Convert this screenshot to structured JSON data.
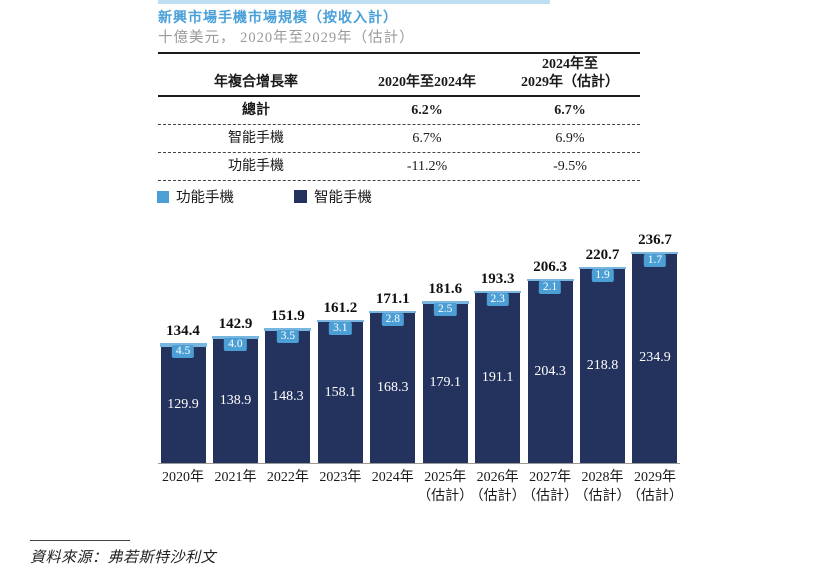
{
  "page": {
    "title": "新興市場手機市場規模（按收入計）",
    "subtitle": "十億美元， 2020年至2029年（估計）"
  },
  "cagr_table": {
    "col1_header": "年複合增長率",
    "col2_header": "2020年至2024年",
    "col3_header_line1": "2024年至",
    "col3_header_line2": "2029年（估計）",
    "rows": [
      {
        "label": "總計",
        "v1": "6.2%",
        "v2": "6.7%"
      },
      {
        "label": "智能手機",
        "v1": "6.7%",
        "v2": "6.9%"
      },
      {
        "label": "功能手機",
        "v1": "-11.2%",
        "v2": "-9.5%"
      }
    ]
  },
  "legend": {
    "feature_label": "功能手機",
    "smart_label": "智能手機"
  },
  "chart_data": {
    "type": "bar",
    "stacked": true,
    "title": "新興市場手機市場規模（按收入計）",
    "unit": "十億美元",
    "categories": [
      "2020年",
      "2021年",
      "2022年",
      "2023年",
      "2024年",
      "2025年",
      "2026年",
      "2027年",
      "2028年",
      "2029年"
    ],
    "estimate_suffix": "（估計）",
    "estimate_start_index": 5,
    "series": [
      {
        "name": "智能手機",
        "color": "#24325E",
        "values": [
          129.9,
          138.9,
          148.3,
          158.1,
          168.3,
          179.1,
          191.1,
          204.3,
          218.8,
          234.9
        ]
      },
      {
        "name": "功能手機",
        "color": "#4C9FD5",
        "values": [
          4.5,
          4.0,
          3.5,
          3.1,
          2.8,
          2.5,
          2.3,
          2.1,
          1.9,
          1.7
        ]
      }
    ],
    "totals": [
      134.4,
      142.9,
      151.9,
      161.2,
      171.1,
      181.6,
      193.3,
      206.3,
      220.7,
      236.7
    ],
    "ylim": [
      0,
      250
    ],
    "grid": false,
    "legend_position": "top-left"
  },
  "source": "資料來源：弗若斯特沙利文",
  "colors": {
    "title_blue": "#4AA0D8",
    "navy": "#24325E",
    "light_blue": "#4C9FD5",
    "cap_blue": "#79B6DF",
    "subtitle_gray": "#9A9A9A"
  }
}
